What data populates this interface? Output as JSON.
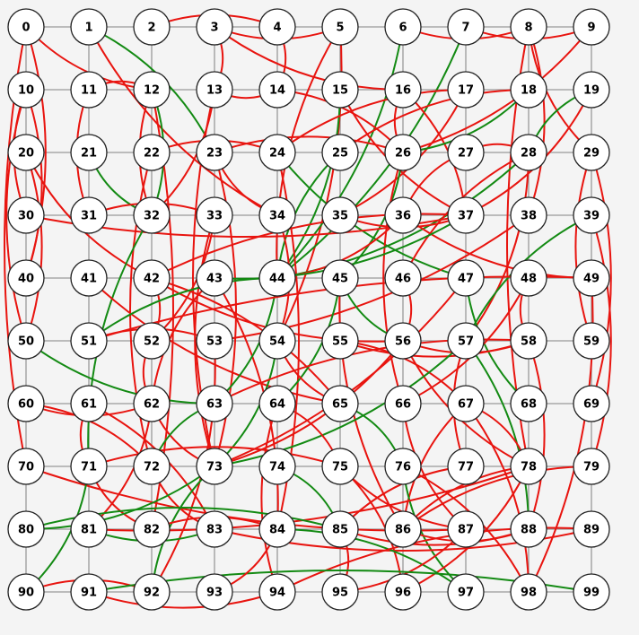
{
  "graph": {
    "rows": 10,
    "cols": 10,
    "nodes": [
      "0",
      "1",
      "2",
      "3",
      "4",
      "5",
      "6",
      "7",
      "8",
      "9",
      "10",
      "11",
      "12",
      "13",
      "14",
      "15",
      "16",
      "17",
      "18",
      "19",
      "20",
      "21",
      "22",
      "23",
      "24",
      "25",
      "26",
      "27",
      "28",
      "29",
      "30",
      "31",
      "32",
      "33",
      "34",
      "35",
      "36",
      "37",
      "38",
      "39",
      "40",
      "41",
      "42",
      "43",
      "44",
      "45",
      "46",
      "47",
      "48",
      "49",
      "50",
      "51",
      "52",
      "53",
      "54",
      "55",
      "56",
      "57",
      "58",
      "59",
      "60",
      "61",
      "62",
      "63",
      "64",
      "65",
      "66",
      "67",
      "68",
      "69",
      "70",
      "71",
      "72",
      "73",
      "74",
      "75",
      "76",
      "77",
      "78",
      "79",
      "80",
      "81",
      "82",
      "83",
      "84",
      "85",
      "86",
      "87",
      "88",
      "89",
      "90",
      "91",
      "92",
      "93",
      "94",
      "95",
      "96",
      "97",
      "98",
      "99"
    ],
    "colors": {
      "background": "#f4f4f4",
      "grid": "#999999",
      "node_fill": "#ffffff",
      "node_stroke": "#222222",
      "red": "#e8140f",
      "green": "#138a13"
    },
    "edges": [
      {
        "from": 0,
        "to": 12,
        "color": "red"
      },
      {
        "from": 0,
        "to": 40,
        "color": "red"
      },
      {
        "from": 0,
        "to": 70,
        "color": "red"
      },
      {
        "from": 1,
        "to": 23,
        "color": "green"
      },
      {
        "from": 1,
        "to": 34,
        "color": "red"
      },
      {
        "from": 2,
        "to": 4,
        "color": "red"
      },
      {
        "from": 3,
        "to": 5,
        "color": "red"
      },
      {
        "from": 3,
        "to": 13,
        "color": "red"
      },
      {
        "from": 3,
        "to": 16,
        "color": "red"
      },
      {
        "from": 4,
        "to": 14,
        "color": "red"
      },
      {
        "from": 5,
        "to": 44,
        "color": "red"
      },
      {
        "from": 5,
        "to": 54,
        "color": "red"
      },
      {
        "from": 6,
        "to": 8,
        "color": "red"
      },
      {
        "from": 6,
        "to": 44,
        "color": "green"
      },
      {
        "from": 7,
        "to": 9,
        "color": "red"
      },
      {
        "from": 7,
        "to": 44,
        "color": "green"
      },
      {
        "from": 8,
        "to": 29,
        "color": "red"
      },
      {
        "from": 8,
        "to": 38,
        "color": "red"
      },
      {
        "from": 8,
        "to": 78,
        "color": "red"
      },
      {
        "from": 9,
        "to": 26,
        "color": "red"
      },
      {
        "from": 10,
        "to": 30,
        "color": "red"
      },
      {
        "from": 10,
        "to": 40,
        "color": "red"
      },
      {
        "from": 10,
        "to": 50,
        "color": "red"
      },
      {
        "from": 11,
        "to": 12,
        "color": "red"
      },
      {
        "from": 11,
        "to": 31,
        "color": "red"
      },
      {
        "from": 12,
        "to": 32,
        "color": "green"
      },
      {
        "from": 12,
        "to": 32,
        "color": "red"
      },
      {
        "from": 12,
        "to": 82,
        "color": "red"
      },
      {
        "from": 13,
        "to": 14,
        "color": "red"
      },
      {
        "from": 13,
        "to": 32,
        "color": "red"
      },
      {
        "from": 13,
        "to": 73,
        "color": "red"
      },
      {
        "from": 14,
        "to": 26,
        "color": "red"
      },
      {
        "from": 15,
        "to": 37,
        "color": "red"
      },
      {
        "from": 15,
        "to": 44,
        "color": "green"
      },
      {
        "from": 16,
        "to": 26,
        "color": "red"
      },
      {
        "from": 16,
        "to": 37,
        "color": "red"
      },
      {
        "from": 17,
        "to": 24,
        "color": "red"
      },
      {
        "from": 17,
        "to": 35,
        "color": "red"
      },
      {
        "from": 18,
        "to": 25,
        "color": "red"
      },
      {
        "from": 18,
        "to": 26,
        "color": "green"
      },
      {
        "from": 19,
        "to": 28,
        "color": "green"
      },
      {
        "from": 19,
        "to": 37,
        "color": "red"
      },
      {
        "from": 20,
        "to": 42,
        "color": "red"
      },
      {
        "from": 20,
        "to": 50,
        "color": "red"
      },
      {
        "from": 21,
        "to": 32,
        "color": "green"
      },
      {
        "from": 22,
        "to": 24,
        "color": "red"
      },
      {
        "from": 22,
        "to": 72,
        "color": "red"
      },
      {
        "from": 23,
        "to": 26,
        "color": "red"
      },
      {
        "from": 23,
        "to": 34,
        "color": "red"
      },
      {
        "from": 23,
        "to": 73,
        "color": "red"
      },
      {
        "from": 24,
        "to": 47,
        "color": "green"
      },
      {
        "from": 24,
        "to": 84,
        "color": "red"
      },
      {
        "from": 25,
        "to": 44,
        "color": "green"
      },
      {
        "from": 26,
        "to": 45,
        "color": "green"
      },
      {
        "from": 26,
        "to": 66,
        "color": "red"
      },
      {
        "from": 27,
        "to": 28,
        "color": "red"
      },
      {
        "from": 27,
        "to": 36,
        "color": "red"
      },
      {
        "from": 28,
        "to": 44,
        "color": "green"
      },
      {
        "from": 28,
        "to": 46,
        "color": "red"
      },
      {
        "from": 28,
        "to": 57,
        "color": "red"
      },
      {
        "from": 29,
        "to": 59,
        "color": "red"
      },
      {
        "from": 29,
        "to": 69,
        "color": "red"
      },
      {
        "from": 30,
        "to": 37,
        "color": "red"
      },
      {
        "from": 31,
        "to": 33,
        "color": "red"
      },
      {
        "from": 32,
        "to": 71,
        "color": "green"
      },
      {
        "from": 33,
        "to": 52,
        "color": "red"
      },
      {
        "from": 33,
        "to": 73,
        "color": "red"
      },
      {
        "from": 34,
        "to": 54,
        "color": "red"
      },
      {
        "from": 35,
        "to": 37,
        "color": "red"
      },
      {
        "from": 36,
        "to": 44,
        "color": "red"
      },
      {
        "from": 36,
        "to": 49,
        "color": "red"
      },
      {
        "from": 37,
        "to": 43,
        "color": "green"
      },
      {
        "from": 37,
        "to": 42,
        "color": "red"
      },
      {
        "from": 38,
        "to": 53,
        "color": "red"
      },
      {
        "from": 39,
        "to": 57,
        "color": "green"
      },
      {
        "from": 39,
        "to": 79,
        "color": "red"
      },
      {
        "from": 41,
        "to": 65,
        "color": "red"
      },
      {
        "from": 42,
        "to": 52,
        "color": "red"
      },
      {
        "from": 42,
        "to": 56,
        "color": "red"
      },
      {
        "from": 42,
        "to": 65,
        "color": "red"
      },
      {
        "from": 43,
        "to": 62,
        "color": "red"
      },
      {
        "from": 43,
        "to": 84,
        "color": "red"
      },
      {
        "from": 44,
        "to": 51,
        "color": "green"
      },
      {
        "from": 44,
        "to": 63,
        "color": "green"
      },
      {
        "from": 45,
        "to": 56,
        "color": "green"
      },
      {
        "from": 45,
        "to": 64,
        "color": "green"
      },
      {
        "from": 45,
        "to": 86,
        "color": "red"
      },
      {
        "from": 46,
        "to": 56,
        "color": "red"
      },
      {
        "from": 47,
        "to": 68,
        "color": "green"
      },
      {
        "from": 47,
        "to": 73,
        "color": "red"
      },
      {
        "from": 48,
        "to": 58,
        "color": "red"
      },
      {
        "from": 48,
        "to": 66,
        "color": "red"
      },
      {
        "from": 49,
        "to": 51,
        "color": "red"
      },
      {
        "from": 49,
        "to": 98,
        "color": "red"
      },
      {
        "from": 50,
        "to": 63,
        "color": "green"
      },
      {
        "from": 51,
        "to": 53,
        "color": "red"
      },
      {
        "from": 52,
        "to": 62,
        "color": "red"
      },
      {
        "from": 53,
        "to": 92,
        "color": "red"
      },
      {
        "from": 54,
        "to": 65,
        "color": "red"
      },
      {
        "from": 54,
        "to": 73,
        "color": "green"
      },
      {
        "from": 55,
        "to": 58,
        "color": "red"
      },
      {
        "from": 55,
        "to": 67,
        "color": "red"
      },
      {
        "from": 56,
        "to": 58,
        "color": "red"
      },
      {
        "from": 56,
        "to": 73,
        "color": "red"
      },
      {
        "from": 56,
        "to": 78,
        "color": "red"
      },
      {
        "from": 57,
        "to": 73,
        "color": "green"
      },
      {
        "from": 57,
        "to": 77,
        "color": "red"
      },
      {
        "from": 57,
        "to": 88,
        "color": "green"
      },
      {
        "from": 58,
        "to": 63,
        "color": "red"
      },
      {
        "from": 58,
        "to": 88,
        "color": "red"
      },
      {
        "from": 60,
        "to": 62,
        "color": "red"
      },
      {
        "from": 60,
        "to": 72,
        "color": "red"
      },
      {
        "from": 61,
        "to": 71,
        "color": "red"
      },
      {
        "from": 61,
        "to": 83,
        "color": "red"
      },
      {
        "from": 62,
        "to": 73,
        "color": "red"
      },
      {
        "from": 62,
        "to": 81,
        "color": "red"
      },
      {
        "from": 63,
        "to": 72,
        "color": "green"
      },
      {
        "from": 64,
        "to": 75,
        "color": "red"
      },
      {
        "from": 64,
        "to": 94,
        "color": "red"
      },
      {
        "from": 65,
        "to": 76,
        "color": "green"
      },
      {
        "from": 66,
        "to": 87,
        "color": "red"
      },
      {
        "from": 67,
        "to": 78,
        "color": "red"
      },
      {
        "from": 67,
        "to": 86,
        "color": "red"
      },
      {
        "from": 67,
        "to": 98,
        "color": "red"
      },
      {
        "from": 70,
        "to": 87,
        "color": "red"
      },
      {
        "from": 71,
        "to": 75,
        "color": "red"
      },
      {
        "from": 71,
        "to": 82,
        "color": "red"
      },
      {
        "from": 71,
        "to": 90,
        "color": "green"
      },
      {
        "from": 72,
        "to": 83,
        "color": "red"
      },
      {
        "from": 73,
        "to": 80,
        "color": "green"
      },
      {
        "from": 73,
        "to": 92,
        "color": "green"
      },
      {
        "from": 74,
        "to": 85,
        "color": "green"
      },
      {
        "from": 75,
        "to": 87,
        "color": "red"
      },
      {
        "from": 75,
        "to": 96,
        "color": "red"
      },
      {
        "from": 76,
        "to": 97,
        "color": "green"
      },
      {
        "from": 76,
        "to": 98,
        "color": "red"
      },
      {
        "from": 77,
        "to": 85,
        "color": "red"
      },
      {
        "from": 78,
        "to": 81,
        "color": "red"
      },
      {
        "from": 78,
        "to": 86,
        "color": "red"
      },
      {
        "from": 78,
        "to": 96,
        "color": "red"
      },
      {
        "from": 79,
        "to": 86,
        "color": "red"
      },
      {
        "from": 80,
        "to": 85,
        "color": "green"
      },
      {
        "from": 81,
        "to": 83,
        "color": "green"
      },
      {
        "from": 82,
        "to": 84,
        "color": "red"
      },
      {
        "from": 83,
        "to": 89,
        "color": "red"
      },
      {
        "from": 84,
        "to": 97,
        "color": "green"
      },
      {
        "from": 85,
        "to": 88,
        "color": "red"
      },
      {
        "from": 85,
        "to": 95,
        "color": "red"
      },
      {
        "from": 86,
        "to": 88,
        "color": "red"
      },
      {
        "from": 87,
        "to": 95,
        "color": "red"
      },
      {
        "from": 89,
        "to": 94,
        "color": "red"
      },
      {
        "from": 90,
        "to": 92,
        "color": "red"
      },
      {
        "from": 91,
        "to": 94,
        "color": "red"
      },
      {
        "from": 91,
        "to": 99,
        "color": "green"
      },
      {
        "from": 93,
        "to": 84,
        "color": "red"
      }
    ]
  }
}
